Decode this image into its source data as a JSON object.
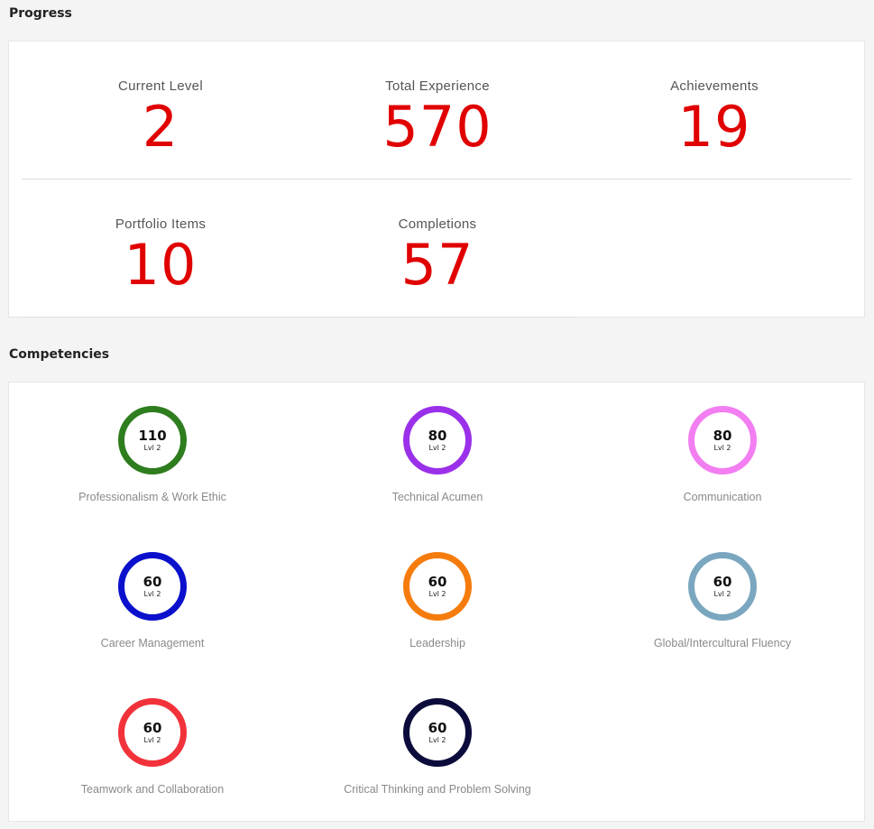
{
  "progress": {
    "title": "Progress",
    "stats": [
      {
        "label": "Current Level",
        "value": "2"
      },
      {
        "label": "Total Experience",
        "value": "570"
      },
      {
        "label": "Achievements",
        "value": "19"
      },
      {
        "label": "Portfolio Items",
        "value": "10"
      },
      {
        "label": "Completions",
        "value": "57"
      }
    ]
  },
  "competencies": {
    "title": "Competencies",
    "items": [
      {
        "name": "Professionalism & Work Ethic",
        "score": "110",
        "level": "Lvl 2",
        "color": "#2e7d1e"
      },
      {
        "name": "Technical Acumen",
        "score": "80",
        "level": "Lvl 2",
        "color": "#9b30ea"
      },
      {
        "name": "Communication",
        "score": "80",
        "level": "Lvl 2",
        "color": "#f27ef2"
      },
      {
        "name": "Career Management",
        "score": "60",
        "level": "Lvl 2",
        "color": "#0a10cc"
      },
      {
        "name": "Leadership",
        "score": "60",
        "level": "Lvl 2",
        "color": "#f57c0c"
      },
      {
        "name": "Global/Intercultural Fluency",
        "score": "60",
        "level": "Lvl 2",
        "color": "#7aa7bf"
      },
      {
        "name": "Teamwork and Collaboration",
        "score": "60",
        "level": "Lvl 2",
        "color": "#f2323a"
      },
      {
        "name": "Critical Thinking and Problem Solving",
        "score": "60",
        "level": "Lvl 2",
        "color": "#0c0c3c"
      }
    ]
  }
}
